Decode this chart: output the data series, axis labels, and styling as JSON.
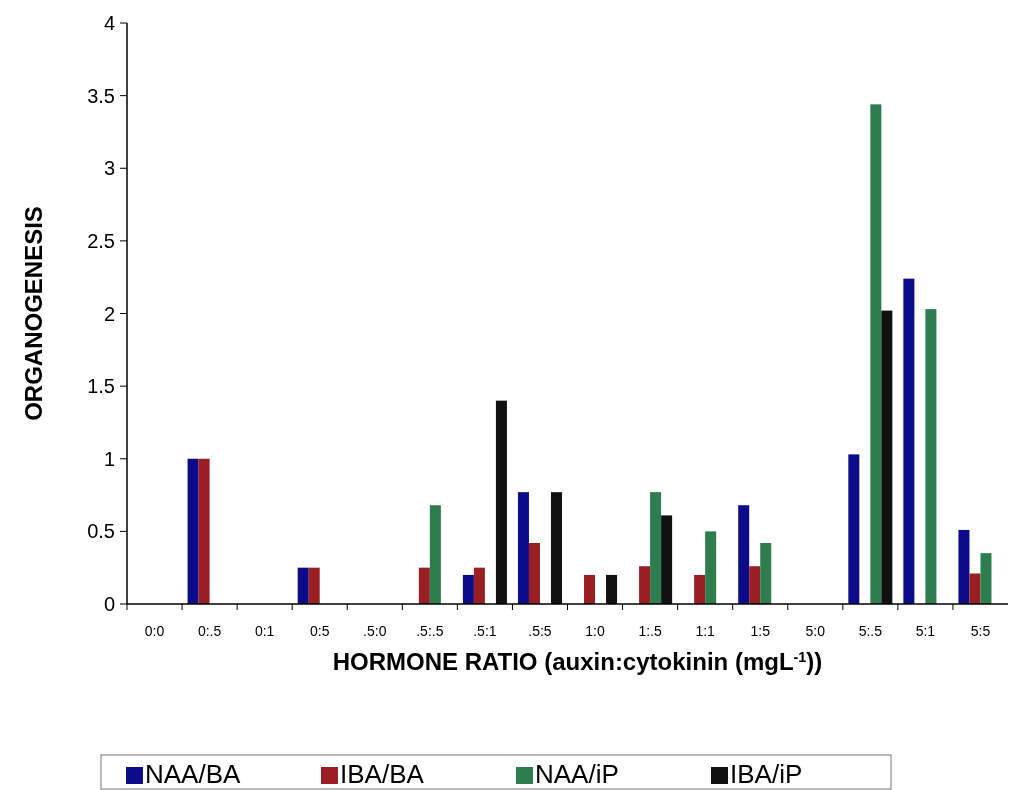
{
  "chart_data": {
    "type": "bar",
    "xlabel": "HORMONE RATIO (auxin:cytokinin (mgL$^{-1}$))",
    "ylabel": "ORGANOGENESIS",
    "categories": [
      "0:0",
      "0:.5",
      "0:1",
      "0:5",
      ".5:0",
      ".5:.5",
      ".5:1",
      ".5:5",
      "1:0",
      "1:.5",
      "1:1",
      "1:5",
      "5:0",
      "5:.5",
      "5:1",
      "5:5"
    ],
    "series": [
      {
        "name": "NAA/BA",
        "color": "#0c0c8a",
        "values": [
          0,
          1,
          0,
          0.25,
          0,
          0,
          0.2,
          0.77,
          0,
          0,
          0,
          0.68,
          0,
          1.03,
          2.24,
          0.51
        ]
      },
      {
        "name": "IBA/BA",
        "color": "#9a1f24",
        "values": [
          0,
          1,
          0,
          0.25,
          0,
          0.25,
          0.25,
          0.42,
          0.2,
          0.26,
          0.2,
          0.26,
          0,
          0,
          0,
          0.21
        ]
      },
      {
        "name": "NAA/iP",
        "color": "#2e7d4f",
        "values": [
          0,
          0,
          0,
          0,
          0,
          0.68,
          0,
          0,
          0,
          0.77,
          0.5,
          0.42,
          0,
          3.44,
          2.03,
          0.35
        ]
      },
      {
        "name": "IBA/iP",
        "color": "#111111",
        "values": [
          0,
          0,
          0,
          0,
          0,
          0,
          1.4,
          0.77,
          0.2,
          0.61,
          0,
          0,
          0,
          2.02,
          0,
          0
        ]
      }
    ],
    "ylim": [
      0,
      4
    ],
    "yticks": [
      0,
      0.5,
      1,
      1.5,
      2,
      2.5,
      3,
      3.5,
      4
    ],
    "grid": false,
    "legend": "bottom"
  }
}
